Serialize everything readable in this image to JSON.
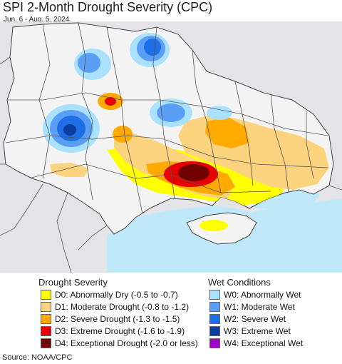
{
  "map": {
    "title": "SPI 2-Month Drought Severity (CPC)",
    "subtitle": "Jun. 6 - Aug. 5, 2024",
    "colors": {
      "land": "#f4f4f4",
      "outside_land": "#e4e4e8",
      "sea": "#bfe9fa",
      "borders": "#555555"
    }
  },
  "legend": {
    "drought": {
      "heading": "Drought Severity",
      "items": [
        {
          "label": "D0: Abnormally Dry (-0.5 to -0.7)",
          "color": "#ffff00"
        },
        {
          "label": "D1: Moderate Drought (-0.8 to -1.2)",
          "color": "#fcd37f"
        },
        {
          "label": "D2: Severe Drought (-1.3 to -1.5)",
          "color": "#ffaa00"
        },
        {
          "label": "D3: Extreme Drought (-1.6 to -1.9)",
          "color": "#e60000"
        },
        {
          "label": "D4: Exceptional Drought (-2.0 or less)",
          "color": "#730000"
        }
      ]
    },
    "wet": {
      "heading": "Wet Conditions",
      "items": [
        {
          "label": "W0: Abnormally Wet",
          "color": "#aae1ff"
        },
        {
          "label": "W1: Moderate Wet",
          "color": "#5a9ff5"
        },
        {
          "label": "W2: Severe Wet",
          "color": "#1e6ee6"
        },
        {
          "label": "W3: Extreme Wet",
          "color": "#0a3ca0"
        },
        {
          "label": "W4: Exceptional Wet",
          "color": "#a000c8"
        }
      ]
    }
  },
  "source": "Source: NOAA/CPC"
}
